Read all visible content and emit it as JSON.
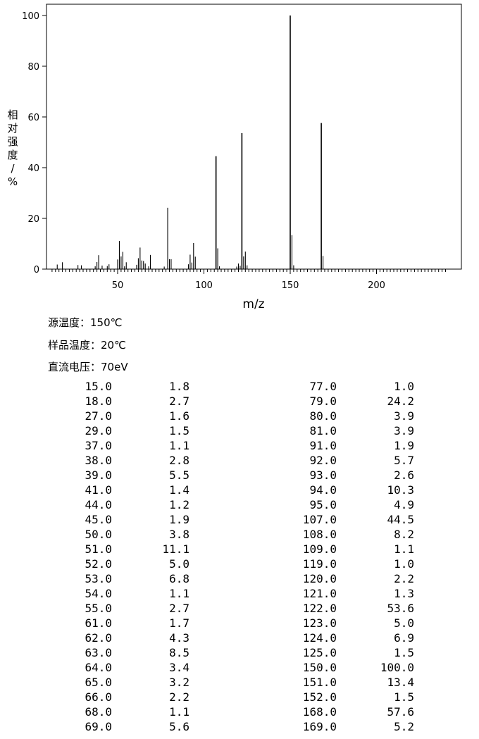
{
  "chart_data": {
    "type": "bar",
    "xlabel": "m/z",
    "ylabel": "相对强度/%",
    "xlim": [
      10,
      245
    ],
    "ylim": [
      0,
      100
    ],
    "xticks": [
      50,
      100,
      150,
      200
    ],
    "yticks": [
      0,
      20,
      40,
      60,
      80,
      100
    ],
    "peaks": [
      [
        15,
        1.8
      ],
      [
        18,
        2.7
      ],
      [
        27,
        1.6
      ],
      [
        29,
        1.5
      ],
      [
        37,
        1.1
      ],
      [
        38,
        2.8
      ],
      [
        39,
        5.5
      ],
      [
        41,
        1.4
      ],
      [
        44,
        1.2
      ],
      [
        45,
        1.9
      ],
      [
        50,
        3.8
      ],
      [
        51,
        11.1
      ],
      [
        52,
        5.0
      ],
      [
        53,
        6.8
      ],
      [
        54,
        1.1
      ],
      [
        55,
        2.7
      ],
      [
        61,
        1.7
      ],
      [
        62,
        4.3
      ],
      [
        63,
        8.5
      ],
      [
        64,
        3.4
      ],
      [
        65,
        3.2
      ],
      [
        66,
        2.2
      ],
      [
        68,
        1.1
      ],
      [
        69,
        5.6
      ],
      [
        77,
        1.0
      ],
      [
        79,
        24.2
      ],
      [
        80,
        3.9
      ],
      [
        81,
        3.9
      ],
      [
        91,
        1.9
      ],
      [
        92,
        5.7
      ],
      [
        93,
        2.6
      ],
      [
        94,
        10.3
      ],
      [
        95,
        4.9
      ],
      [
        107,
        44.5
      ],
      [
        108,
        8.2
      ],
      [
        109,
        1.1
      ],
      [
        119,
        1.0
      ],
      [
        120,
        2.2
      ],
      [
        121,
        1.3
      ],
      [
        122,
        53.6
      ],
      [
        123,
        5.0
      ],
      [
        124,
        6.9
      ],
      [
        125,
        1.5
      ],
      [
        150,
        100.0
      ],
      [
        151,
        13.4
      ],
      [
        152,
        1.5
      ],
      [
        168,
        57.6
      ],
      [
        169,
        5.2
      ]
    ]
  },
  "conditions": {
    "source_temp": "源温度：150℃",
    "sample_temp": "样品温度：20℃",
    "voltage": "直流电压：70eV"
  },
  "table_left": [
    [
      "15.0",
      "1.8"
    ],
    [
      "18.0",
      "2.7"
    ],
    [
      "27.0",
      "1.6"
    ],
    [
      "29.0",
      "1.5"
    ],
    [
      "37.0",
      "1.1"
    ],
    [
      "38.0",
      "2.8"
    ],
    [
      "39.0",
      "5.5"
    ],
    [
      "41.0",
      "1.4"
    ],
    [
      "44.0",
      "1.2"
    ],
    [
      "45.0",
      "1.9"
    ],
    [
      "50.0",
      "3.8"
    ],
    [
      "51.0",
      "11.1"
    ],
    [
      "52.0",
      "5.0"
    ],
    [
      "53.0",
      "6.8"
    ],
    [
      "54.0",
      "1.1"
    ],
    [
      "55.0",
      "2.7"
    ],
    [
      "61.0",
      "1.7"
    ],
    [
      "62.0",
      "4.3"
    ],
    [
      "63.0",
      "8.5"
    ],
    [
      "64.0",
      "3.4"
    ],
    [
      "65.0",
      "3.2"
    ],
    [
      "66.0",
      "2.2"
    ],
    [
      "68.0",
      "1.1"
    ],
    [
      "69.0",
      "5.6"
    ]
  ],
  "table_right": [
    [
      "77.0",
      "1.0"
    ],
    [
      "79.0",
      "24.2"
    ],
    [
      "80.0",
      "3.9"
    ],
    [
      "81.0",
      "3.9"
    ],
    [
      "91.0",
      "1.9"
    ],
    [
      "92.0",
      "5.7"
    ],
    [
      "93.0",
      "2.6"
    ],
    [
      "94.0",
      "10.3"
    ],
    [
      "95.0",
      "4.9"
    ],
    [
      "107.0",
      "44.5"
    ],
    [
      "108.0",
      "8.2"
    ],
    [
      "109.0",
      "1.1"
    ],
    [
      "119.0",
      "1.0"
    ],
    [
      "120.0",
      "2.2"
    ],
    [
      "121.0",
      "1.3"
    ],
    [
      "122.0",
      "53.6"
    ],
    [
      "123.0",
      "5.0"
    ],
    [
      "124.0",
      "6.9"
    ],
    [
      "125.0",
      "1.5"
    ],
    [
      "150.0",
      "100.0"
    ],
    [
      "151.0",
      "13.4"
    ],
    [
      "152.0",
      "1.5"
    ],
    [
      "168.0",
      "57.6"
    ],
    [
      "169.0",
      "5.2"
    ]
  ]
}
